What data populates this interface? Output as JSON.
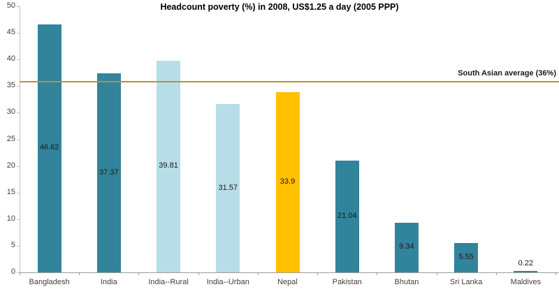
{
  "colors": {
    "background": "#FFFFFF",
    "bar_teal": "#31849B",
    "bar_light_blue": "#B7DEE8",
    "bar_yellow": "#FFC000",
    "reference_line": "#C8883A",
    "x_axis_line": "#9C9C9C",
    "y_axis_line": "#C3C3C3",
    "axis_text": "#3F3F3F",
    "value_text": "#1A1A1A",
    "title_text": "#000000"
  },
  "chart_data": {
    "type": "bar",
    "title": "Headcount poverty (%) in 2008, US$1.25 a day (2005 PPP)",
    "xlabel": "",
    "ylabel": "",
    "categories": [
      "Bangladesh",
      "India",
      "India--Rural",
      "India--Urban",
      "Nepal",
      "Pakistan",
      "Bhutan",
      "Sri Lanka",
      "Maldives"
    ],
    "values": [
      46.62,
      37.37,
      39.81,
      31.57,
      33.9,
      21.04,
      9.34,
      5.55,
      0.22
    ],
    "bar_colors": [
      "#31849B",
      "#31849B",
      "#B7DEE8",
      "#B7DEE8",
      "#FFC000",
      "#31849B",
      "#31849B",
      "#31849B",
      "#31849B"
    ],
    "ylim": [
      0,
      50
    ],
    "ytick_step": 5,
    "grid": false,
    "legend": "none",
    "data_label_position": "inside-center",
    "reference_line": {
      "value": 36,
      "label": "South Asian average (36%)"
    }
  }
}
